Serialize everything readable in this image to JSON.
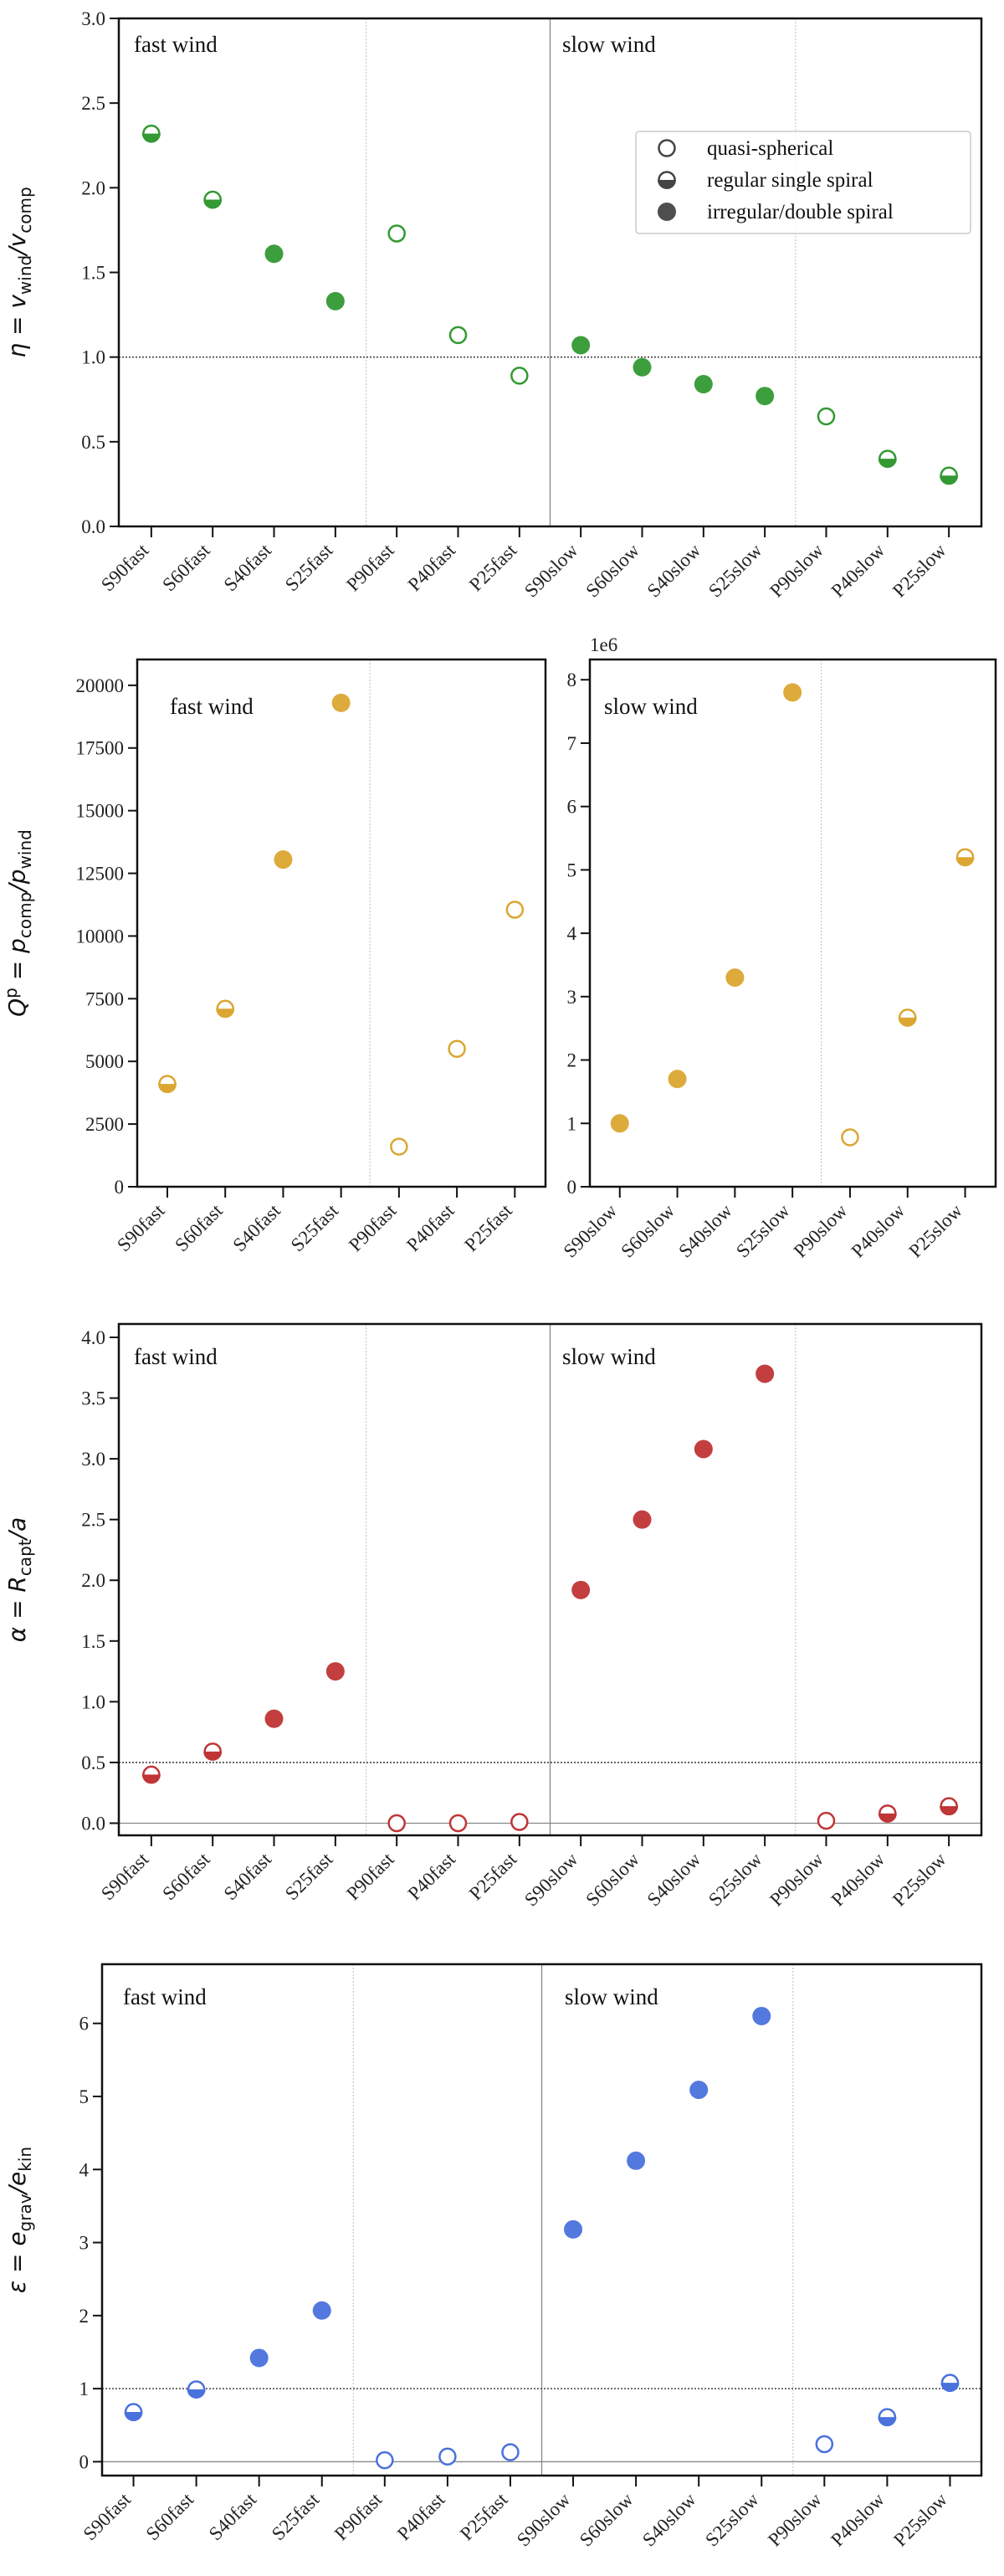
{
  "legend": {
    "entries": [
      {
        "label": "quasi-spherical",
        "style": "quasi"
      },
      {
        "label": "regular single spiral",
        "style": "regular"
      },
      {
        "label": "irregular/double spiral",
        "style": "irregular"
      }
    ],
    "placement": "upper-right (first panel)"
  },
  "chart_data": [
    {
      "type": "scatter",
      "ylabel": "η = v_wind/v_comp",
      "ylabel_main": "η = v",
      "ylabel_sub1": "wind",
      "ylabel_mid": "/v",
      "ylabel_sub2": "comp",
      "color": "#339933",
      "ylim": [
        0,
        3
      ],
      "yticks": [
        "0.0",
        "0.5",
        "1.0",
        "1.5",
        "2.0",
        "2.5",
        "3.0"
      ],
      "annotations": [
        "fast wind",
        "slow wind"
      ],
      "reference_line": 1.0,
      "categories": [
        "S90fast",
        "S60fast",
        "S40fast",
        "S25fast",
        "P90fast",
        "P40fast",
        "P25fast",
        "S90slow",
        "S60slow",
        "S40slow",
        "S25slow",
        "P90slow",
        "P40slow",
        "P25slow"
      ],
      "values": [
        2.32,
        1.93,
        1.61,
        1.33,
        1.73,
        1.13,
        0.89,
        1.07,
        0.94,
        0.84,
        0.77,
        0.65,
        0.4,
        0.3
      ],
      "morphology": [
        "regular",
        "regular",
        "irregular",
        "irregular",
        "quasi",
        "quasi",
        "quasi",
        "irregular",
        "irregular",
        "irregular",
        "irregular",
        "quasi",
        "regular",
        "regular"
      ],
      "legend": true
    },
    {
      "type": "scatter",
      "ylabel": "Q^p = p_comp/p_wind",
      "ylabel_main": "Q",
      "ylabel_sup": "p",
      "ylabel_mid": " = p",
      "ylabel_sub1": "comp",
      "ylabel_mid2": "/p",
      "ylabel_sub2": "wind",
      "color": "#dba632",
      "ylim": [
        0,
        21030
      ],
      "yticks": [
        "0",
        "2500",
        "5000",
        "7500",
        "10000",
        "12500",
        "15000",
        "17500",
        "20000"
      ],
      "annotations": [
        "fast wind"
      ],
      "categories": [
        "S90fast",
        "S60fast",
        "S40fast",
        "S25fast",
        "P90fast",
        "P40fast",
        "P25fast"
      ],
      "values": [
        4100,
        7100,
        13050,
        19300,
        1600,
        5500,
        11050
      ],
      "morphology": [
        "regular",
        "regular",
        "irregular",
        "irregular",
        "quasi",
        "quasi",
        "quasi"
      ]
    },
    {
      "type": "scatter",
      "color": "#dba632",
      "offset_text": "1e6",
      "ylim": [
        0,
        8.32
      ],
      "yticks": [
        "0",
        "1",
        "2",
        "3",
        "4",
        "5",
        "6",
        "7",
        "8"
      ],
      "annotations": [
        "slow wind"
      ],
      "categories": [
        "S90slow",
        "S60slow",
        "S40slow",
        "S25slow",
        "P90slow",
        "P40slow",
        "P25slow"
      ],
      "values": [
        1.0,
        1.7,
        3.3,
        7.8,
        0.78,
        2.67,
        5.2
      ],
      "morphology": [
        "irregular",
        "irregular",
        "irregular",
        "irregular",
        "quasi",
        "regular",
        "regular"
      ]
    },
    {
      "type": "scatter",
      "ylabel": "α = R_capt/a",
      "ylabel_main": "α = R",
      "ylabel_sub1": "capt",
      "ylabel_mid": "/a",
      "color": "#c03535",
      "ylim": [
        -0.1,
        4.11
      ],
      "yticks": [
        "0.0",
        "0.5",
        "1.0",
        "1.5",
        "2.0",
        "2.5",
        "3.0",
        "3.5",
        "4.0"
      ],
      "annotations": [
        "fast wind",
        "slow wind"
      ],
      "reference_line": 0.5,
      "zero_line": true,
      "categories": [
        "S90fast",
        "S60fast",
        "S40fast",
        "S25fast",
        "P90fast",
        "P40fast",
        "P25fast",
        "S90slow",
        "S60slow",
        "S40slow",
        "S25slow",
        "P90slow",
        "P40slow",
        "P25slow"
      ],
      "values": [
        0.4,
        0.59,
        0.86,
        1.25,
        0.0,
        0.0,
        0.01,
        1.92,
        2.5,
        3.08,
        3.7,
        0.02,
        0.08,
        0.14
      ],
      "morphology": [
        "regular",
        "regular",
        "irregular",
        "irregular",
        "quasi",
        "quasi",
        "quasi",
        "irregular",
        "irregular",
        "irregular",
        "irregular",
        "quasi",
        "regular",
        "regular"
      ]
    },
    {
      "type": "scatter",
      "ylabel": "ε = e_grav/e_kin",
      "ylabel_main": "ε = e",
      "ylabel_sub1": "grav",
      "ylabel_mid": "/e",
      "ylabel_sub2": "kin",
      "color": "#4a72dc",
      "ylim": [
        -0.19,
        6.81
      ],
      "yticks": [
        "0",
        "1",
        "2",
        "3",
        "4",
        "5",
        "6"
      ],
      "annotations": [
        "fast wind",
        "slow wind"
      ],
      "reference_line": 1.0,
      "zero_line": true,
      "categories": [
        "S90fast",
        "S60fast",
        "S40fast",
        "S25fast",
        "P90fast",
        "P40fast",
        "P25fast",
        "S90slow",
        "S60slow",
        "S40slow",
        "S25slow",
        "P90slow",
        "P40slow",
        "P25slow"
      ],
      "values": [
        0.68,
        0.99,
        1.42,
        2.07,
        0.02,
        0.07,
        0.13,
        3.18,
        4.12,
        5.09,
        6.1,
        0.24,
        0.61,
        1.08
      ],
      "morphology": [
        "regular",
        "regular",
        "irregular",
        "irregular",
        "quasi",
        "quasi",
        "quasi",
        "irregular",
        "irregular",
        "irregular",
        "irregular",
        "quasi",
        "regular",
        "regular"
      ]
    }
  ]
}
